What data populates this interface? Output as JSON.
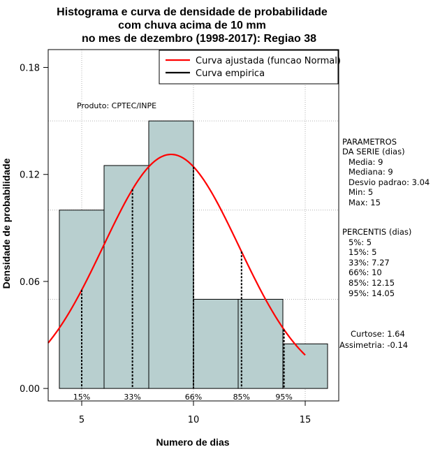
{
  "chart_data": {
    "type": "histogram",
    "title_lines": [
      "Histograma e curva de densidade de probabilidade",
      "com chuva acima de 10 mm",
      "no mes de dezembro (1998-2017): Regiao 38"
    ],
    "xlabel": "Numero de dias",
    "ylabel": "Densidade de probabilidade",
    "xlim": [
      3.5,
      16.5
    ],
    "ylim": [
      -0.007,
      0.19
    ],
    "x_ticks": [
      5,
      10,
      15
    ],
    "y_ticks": [
      0.0,
      0.06,
      0.12,
      0.18
    ],
    "y_tick_labels": [
      "0.00",
      "0.06",
      "0.12",
      "0.18"
    ],
    "grid_x": [
      5,
      10,
      15
    ],
    "grid_y": [
      0.05,
      0.1,
      0.15
    ],
    "bars": [
      {
        "x0": 4,
        "x1": 6,
        "density": 0.1
      },
      {
        "x0": 6,
        "x1": 8,
        "density": 0.125
      },
      {
        "x0": 8,
        "x1": 10,
        "density": 0.15
      },
      {
        "x0": 10,
        "x1": 12,
        "density": 0.05
      },
      {
        "x0": 12,
        "x1": 14,
        "density": 0.05
      },
      {
        "x0": 14,
        "x1": 16,
        "density": 0.025
      }
    ],
    "bar_fill": "#b8cfcf",
    "normal_fit": {
      "mean": 9,
      "sd": 3.04,
      "x_from": 3.5,
      "x_to": 15,
      "color": "#ff0000"
    },
    "percentile_lines": [
      {
        "label": "15%",
        "x": 5
      },
      {
        "label": "33%",
        "x": 7.27
      },
      {
        "label": "66%",
        "x": 10
      },
      {
        "label": "85%",
        "x": 12.15
      },
      {
        "label": "95%",
        "x": 14.05
      }
    ],
    "legend": {
      "position": "top-right",
      "entries": [
        {
          "label": "Curva ajustada (funcao Normal)",
          "color": "#ff0000"
        },
        {
          "label": "Curva empirica",
          "color": "#000000"
        }
      ]
    },
    "annotation": "Produto: CPTEC/INPE"
  },
  "side_panel": {
    "params_title": [
      "PARAMETROS",
      "DA SERIE (dias)"
    ],
    "params": [
      "Media: 9",
      "Mediana: 9",
      "Desvio padrao: 3.04",
      "Min: 5",
      "Max: 15"
    ],
    "perc_title": "PERCENTIS (dias)",
    "percentis": [
      "5%: 5",
      "15%: 5",
      "33%: 7.27",
      "66%: 10",
      "85%: 12.15",
      "95%: 14.05"
    ],
    "curtose": "Curtose: 1.64",
    "assimetria": "Assimetria: -0.14"
  }
}
